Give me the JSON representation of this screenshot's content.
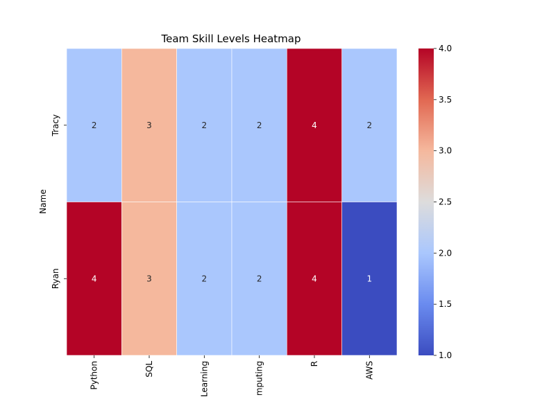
{
  "chart_data": {
    "type": "heatmap",
    "title": "Team Skill Levels Heatmap",
    "ylabel": "Name",
    "xlabel": "",
    "rows": [
      "Tracy",
      "Ryan"
    ],
    "columns": [
      "Python",
      "SQL",
      "Learning",
      "mputing",
      "R",
      "AWS"
    ],
    "values": [
      [
        2,
        3,
        2,
        2,
        4,
        2
      ],
      [
        4,
        3,
        2,
        2,
        4,
        1
      ]
    ],
    "colormap": "coolwarm",
    "colorbar": {
      "range": [
        1.0,
        4.0
      ],
      "ticks": [
        "1.0",
        "1.5",
        "2.0",
        "2.5",
        "3.0",
        "3.5",
        "4.0"
      ]
    },
    "colors": {
      "1": "#3b4cc0",
      "2": "#aac7fd",
      "3": "#f5b89d",
      "4": "#b40426"
    }
  }
}
